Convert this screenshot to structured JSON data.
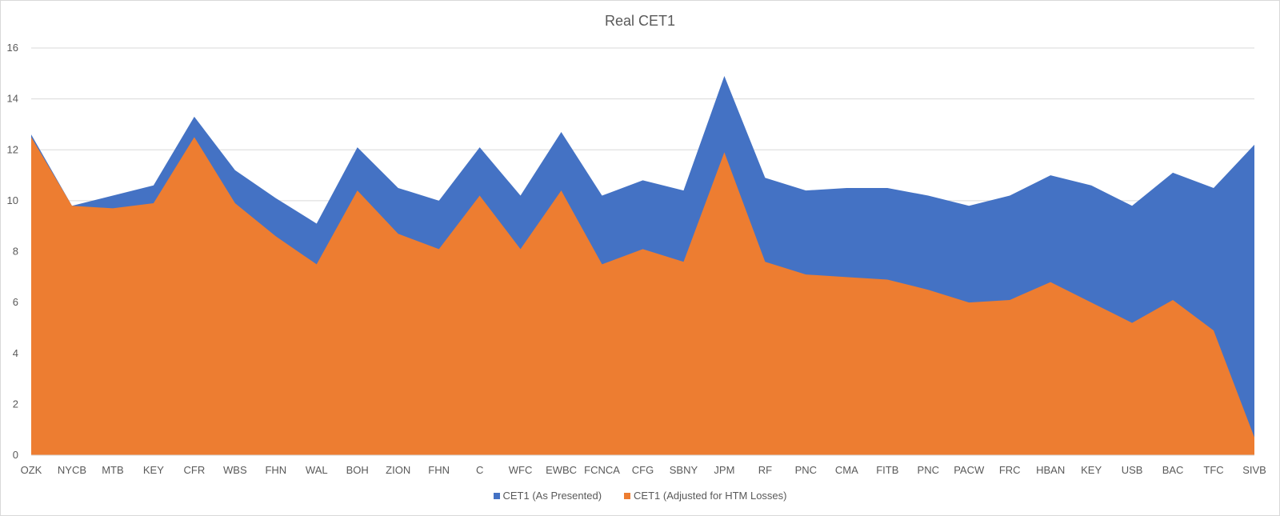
{
  "chart_data": {
    "type": "area",
    "title": "Real CET1",
    "xlabel": "",
    "ylabel": "",
    "ylim": [
      0,
      16
    ],
    "yticks": [
      0,
      2,
      4,
      6,
      8,
      10,
      12,
      14,
      16
    ],
    "grid": true,
    "legend": "bottom",
    "categories": [
      "OZK",
      "NYCB",
      "MTB",
      "KEY",
      "CFR",
      "WBS",
      "FHN",
      "WAL",
      "BOH",
      "ZION",
      "FHN",
      "C",
      "WFC",
      "EWBC",
      "FCNCA",
      "CFG",
      "SBNY",
      "JPM",
      "RF",
      "PNC",
      "CMA",
      "FITB",
      "PNC",
      "PACW",
      "FRC",
      "HBAN",
      "KEY",
      "USB",
      "BAC",
      "TFC",
      "SIVB"
    ],
    "series": [
      {
        "name": "CET1 (As Presented)",
        "color": "#4472c4",
        "values": [
          12.6,
          9.8,
          10.2,
          10.6,
          13.3,
          11.2,
          10.1,
          9.1,
          12.1,
          10.5,
          10.0,
          12.1,
          10.2,
          12.7,
          10.2,
          10.8,
          10.4,
          14.9,
          10.9,
          10.4,
          10.5,
          10.5,
          10.2,
          9.8,
          10.2,
          11.0,
          10.6,
          9.8,
          11.1,
          10.5,
          12.2
        ]
      },
      {
        "name": "CET1 (Adjusted for HTM Losses)",
        "color": "#ed7d31",
        "values": [
          12.5,
          9.8,
          9.7,
          9.9,
          12.5,
          9.9,
          8.6,
          7.5,
          10.4,
          8.7,
          8.1,
          10.2,
          8.1,
          10.4,
          7.5,
          8.1,
          7.6,
          11.9,
          7.6,
          7.1,
          7.0,
          6.9,
          6.5,
          6.0,
          6.1,
          6.8,
          6.0,
          5.2,
          6.1,
          4.9,
          0.7
        ]
      }
    ]
  }
}
